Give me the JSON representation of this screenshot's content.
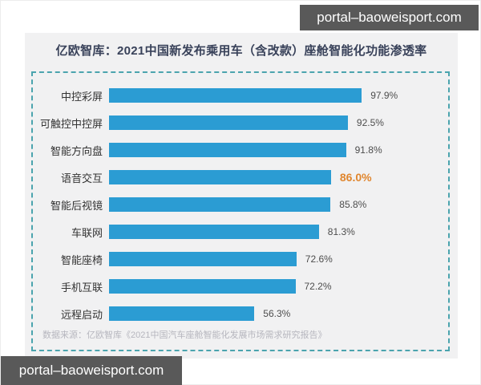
{
  "watermark": {
    "text": "portal–baoweisport.com"
  },
  "chart": {
    "title": "亿欧智库：2021中国新发布乘用车（含改款）座舱智能化功能渗透率",
    "source": "数据来源：亿欧智库《2021中国汽车座舱智能化发展市场需求研究报告》"
  },
  "chart_data": {
    "type": "bar",
    "orientation": "horizontal",
    "title": "亿欧智库：2021中国新发布乘用车（含改款）座舱智能化功能渗透率",
    "categories": [
      "中控彩屏",
      "可触控中控屏",
      "智能方向盘",
      "语音交互",
      "智能后视镜",
      "车联网",
      "智能座椅",
      "手机互联",
      "远程启动"
    ],
    "values": [
      97.9,
      92.5,
      91.8,
      86.0,
      85.8,
      81.3,
      72.6,
      72.2,
      56.3
    ],
    "value_labels": [
      "97.9%",
      "92.5%",
      "91.8%",
      "86.0%",
      "85.8%",
      "81.3%",
      "72.6%",
      "72.2%",
      "56.3%"
    ],
    "highlight_index": 3,
    "xlim": [
      0,
      100
    ],
    "grid": false,
    "legend": false,
    "bar_color": "#2b9cd3",
    "highlight_color": "#e0862e",
    "source": "数据来源：亿欧智库《2021中国汽车座舱智能化发展市场需求研究报告》"
  }
}
